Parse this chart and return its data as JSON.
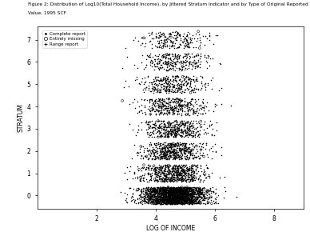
{
  "title_line1": "Figure 2: Distribution of Log10(Total Household Income), by Jittered Stratum Indicator and by Type of Original Reported",
  "title_line2": "Value, 1995 SCF",
  "xlabel": "LOG OF INCOME",
  "ylabel": "STRATUM",
  "xlim": [
    0,
    9
  ],
  "ylim": [
    -0.6,
    7.6
  ],
  "xticks": [
    2,
    4,
    6,
    8
  ],
  "yticks": [
    0,
    1,
    2,
    3,
    4,
    5,
    6,
    7
  ],
  "legend_labels": [
    "Complete report",
    "Entirely missing",
    "Range report"
  ],
  "bg_color": "#ffffff",
  "point_color": "#000000",
  "seed": 42,
  "n_complete_per_stratum": [
    2200,
    600,
    500,
    400,
    350,
    300,
    250,
    200
  ],
  "n_missing_per_stratum": [
    80,
    30,
    25,
    20,
    15,
    12,
    10,
    8
  ],
  "n_range_per_stratum": [
    60,
    25,
    20,
    15,
    12,
    10,
    8,
    6
  ],
  "income_mu": 4.6,
  "income_sigma": 0.55,
  "income_min": 1.0,
  "income_max": 8.0,
  "jitter_range": 0.38,
  "marker_size_complete": 1.2,
  "marker_size_missing": 4.0,
  "marker_size_range": 4.0
}
